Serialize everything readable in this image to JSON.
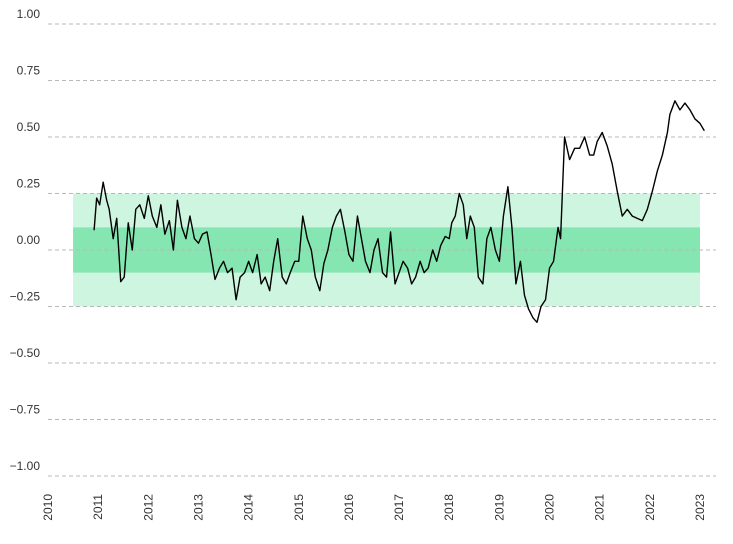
{
  "chart_data": {
    "type": "line",
    "title": "",
    "xlabel": "",
    "ylabel": "",
    "xlim": [
      2010,
      2023
    ],
    "ylim": [
      -1.0,
      1.0
    ],
    "grid": true,
    "y_ticks": [
      {
        "value": 1.0,
        "label": "1.00"
      },
      {
        "value": 0.75,
        "label": "0.75"
      },
      {
        "value": 0.5,
        "label": "0.50"
      },
      {
        "value": 0.25,
        "label": "0.25"
      },
      {
        "value": 0.0,
        "label": "0.00"
      },
      {
        "value": -0.25,
        "label": "−0.25"
      },
      {
        "value": -0.5,
        "label": "−0.50"
      },
      {
        "value": -0.75,
        "label": "−0.75"
      },
      {
        "value": -1.0,
        "label": "−1.00"
      }
    ],
    "x_ticks": [
      {
        "value": 2010,
        "label": "2010"
      },
      {
        "value": 2011,
        "label": "2011"
      },
      {
        "value": 2012,
        "label": "2012"
      },
      {
        "value": 2013,
        "label": "2013"
      },
      {
        "value": 2014,
        "label": "2014"
      },
      {
        "value": 2015,
        "label": "2015"
      },
      {
        "value": 2016,
        "label": "2016"
      },
      {
        "value": 2017,
        "label": "2017"
      },
      {
        "value": 2018,
        "label": "2018"
      },
      {
        "value": 2019,
        "label": "2019"
      },
      {
        "value": 2020,
        "label": "2020"
      },
      {
        "value": 2021,
        "label": "2021"
      },
      {
        "value": 2022,
        "label": "2022"
      },
      {
        "value": 2023,
        "label": "2023"
      }
    ],
    "bands": [
      {
        "y0": -0.25,
        "y1": 0.25,
        "x0": 2010.5,
        "x1": 2023.0,
        "color": "#cdf5e0"
      },
      {
        "y0": -0.1,
        "y1": 0.1,
        "x0": 2010.5,
        "x1": 2023.0,
        "color": "#86e6b2"
      }
    ],
    "series": [
      {
        "color": "#000000",
        "x": [
          2010.92,
          2010.97,
          2011.03,
          2011.1,
          2011.17,
          2011.22,
          2011.3,
          2011.37,
          2011.45,
          2011.52,
          2011.6,
          2011.68,
          2011.75,
          2011.83,
          2011.92,
          2012.0,
          2012.08,
          2012.17,
          2012.25,
          2012.33,
          2012.42,
          2012.5,
          2012.58,
          2012.67,
          2012.75,
          2012.83,
          2012.92,
          2013.0,
          2013.08,
          2013.17,
          2013.25,
          2013.33,
          2013.42,
          2013.5,
          2013.58,
          2013.67,
          2013.75,
          2013.83,
          2013.92,
          2014.0,
          2014.08,
          2014.17,
          2014.25,
          2014.33,
          2014.42,
          2014.5,
          2014.58,
          2014.67,
          2014.75,
          2014.83,
          2014.92,
          2015.0,
          2015.08,
          2015.17,
          2015.25,
          2015.33,
          2015.42,
          2015.5,
          2015.58,
          2015.67,
          2015.75,
          2015.83,
          2015.92,
          2016.0,
          2016.08,
          2016.17,
          2016.25,
          2016.33,
          2016.42,
          2016.5,
          2016.58,
          2016.67,
          2016.75,
          2016.83,
          2016.92,
          2017.0,
          2017.08,
          2017.17,
          2017.25,
          2017.33,
          2017.42,
          2017.5,
          2017.58,
          2017.67,
          2017.75,
          2017.83,
          2017.92,
          2018.0,
          2018.05,
          2018.12,
          2018.2,
          2018.28,
          2018.35,
          2018.42,
          2018.5,
          2018.58,
          2018.67,
          2018.75,
          2018.83,
          2018.92,
          2019.0,
          2019.08,
          2019.17,
          2019.25,
          2019.33,
          2019.42,
          2019.5,
          2019.58,
          2019.67,
          2019.75,
          2019.83,
          2019.92,
          2020.0,
          2020.08,
          2020.17,
          2020.22,
          2020.3,
          2020.4,
          2020.5,
          2020.6,
          2020.7,
          2020.8,
          2020.88,
          2020.95,
          2021.05,
          2021.15,
          2021.25,
          2021.35,
          2021.45,
          2021.55,
          2021.65,
          2021.75,
          2021.85,
          2021.95,
          2022.05,
          2022.15,
          2022.25,
          2022.35,
          2022.4,
          2022.5,
          2022.6,
          2022.7,
          2022.8,
          2022.9,
          2023.0,
          2023.08
        ],
        "y": [
          0.09,
          0.23,
          0.2,
          0.3,
          0.22,
          0.18,
          0.05,
          0.14,
          -0.14,
          -0.12,
          0.12,
          0.0,
          0.18,
          0.2,
          0.14,
          0.24,
          0.15,
          0.1,
          0.2,
          0.07,
          0.13,
          0.0,
          0.22,
          0.1,
          0.05,
          0.15,
          0.05,
          0.03,
          0.07,
          0.08,
          -0.02,
          -0.13,
          -0.08,
          -0.05,
          -0.1,
          -0.08,
          -0.22,
          -0.12,
          -0.1,
          -0.05,
          -0.1,
          -0.02,
          -0.15,
          -0.12,
          -0.18,
          -0.05,
          0.05,
          -0.12,
          -0.15,
          -0.1,
          -0.05,
          -0.05,
          0.15,
          0.05,
          0.0,
          -0.12,
          -0.18,
          -0.06,
          0.0,
          0.1,
          0.15,
          0.18,
          0.08,
          -0.02,
          -0.05,
          0.15,
          0.05,
          -0.05,
          -0.1,
          0.0,
          0.05,
          -0.1,
          -0.12,
          0.08,
          -0.15,
          -0.1,
          -0.05,
          -0.08,
          -0.15,
          -0.12,
          -0.05,
          -0.1,
          -0.08,
          0.0,
          -0.05,
          0.02,
          0.06,
          0.05,
          0.12,
          0.15,
          0.25,
          0.2,
          0.05,
          0.15,
          0.1,
          -0.12,
          -0.15,
          0.05,
          0.1,
          0.0,
          -0.05,
          0.15,
          0.28,
          0.1,
          -0.15,
          -0.05,
          -0.2,
          -0.26,
          -0.3,
          -0.32,
          -0.25,
          -0.22,
          -0.08,
          -0.05,
          0.1,
          0.05,
          0.5,
          0.4,
          0.45,
          0.45,
          0.5,
          0.42,
          0.42,
          0.48,
          0.52,
          0.46,
          0.38,
          0.26,
          0.15,
          0.18,
          0.15,
          0.14,
          0.13,
          0.18,
          0.26,
          0.35,
          0.42,
          0.52,
          0.6,
          0.66,
          0.62,
          0.65,
          0.62,
          0.58,
          0.56,
          0.53
        ]
      }
    ]
  }
}
